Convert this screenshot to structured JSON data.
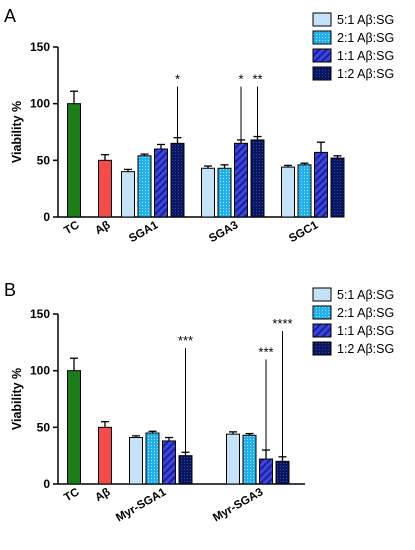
{
  "chart_data": [
    {
      "type": "bar",
      "panel_label": "A",
      "ylabel": "Viability %",
      "ylim": [
        0,
        150
      ],
      "yticks": [
        0,
        50,
        100,
        150
      ],
      "legend": {
        "placement": "top-right",
        "entries": [
          "5:1 Aβ:SG",
          "2:1 Aβ:SG",
          "1:1 Aβ:SG",
          "1:2 Aβ:SG"
        ]
      },
      "controls": [
        {
          "label": "TC",
          "value": 100,
          "error": 11,
          "color": "#1b7e1b"
        },
        {
          "label": "Aβ",
          "value": 50,
          "error": 5,
          "color": "#f44b4b"
        }
      ],
      "groups": [
        {
          "label": "SGA1",
          "values": [
            40,
            54,
            60,
            65
          ],
          "errors": [
            2,
            1.5,
            4,
            5
          ]
        },
        {
          "label": "SGA3",
          "values": [
            43,
            43,
            65,
            68
          ],
          "errors": [
            2,
            3,
            3,
            3
          ]
        },
        {
          "label": "SGC1",
          "values": [
            44,
            46,
            57,
            52
          ],
          "errors": [
            1.5,
            1.5,
            9,
            2
          ]
        }
      ],
      "series_styles": [
        {
          "fill": "#c6e2f7",
          "pattern": "none"
        },
        {
          "fill": "#22b0ea",
          "pattern": "dots"
        },
        {
          "fill": "#3e46d9",
          "pattern": "hatch"
        },
        {
          "fill": "#0b1660",
          "pattern": "fine-dots"
        }
      ],
      "significance": [
        {
          "group": 0,
          "series": 3,
          "text": "*",
          "to": 115
        },
        {
          "group": 1,
          "series": 2,
          "text": "*",
          "to": 115
        },
        {
          "group": 1,
          "series": 3,
          "text": "**",
          "to": 115
        }
      ]
    },
    {
      "type": "bar",
      "panel_label": "B",
      "ylabel": "Viability %",
      "ylim": [
        0,
        150
      ],
      "yticks": [
        0,
        50,
        100,
        150
      ],
      "legend": {
        "placement": "top-right",
        "entries": [
          "5:1 Aβ:SG",
          "2:1 Aβ:SG",
          "1:1 Aβ:SG",
          "1:2 Aβ:SG"
        ]
      },
      "controls": [
        {
          "label": "TC",
          "value": 100,
          "error": 11,
          "color": "#1b7e1b"
        },
        {
          "label": "Aβ",
          "value": 50,
          "error": 5,
          "color": "#f44b4b"
        }
      ],
      "groups": [
        {
          "label": "Myr-SGA1",
          "values": [
            41,
            45,
            38,
            25
          ],
          "errors": [
            1.5,
            1.5,
            3,
            3
          ]
        },
        {
          "label": "Myr-SGA3",
          "values": [
            44,
            43,
            22,
            20
          ],
          "errors": [
            2,
            1.5,
            8,
            4
          ]
        }
      ],
      "series_styles": [
        {
          "fill": "#c6e2f7",
          "pattern": "none"
        },
        {
          "fill": "#22b0ea",
          "pattern": "dots"
        },
        {
          "fill": "#3e46d9",
          "pattern": "hatch"
        },
        {
          "fill": "#0b1660",
          "pattern": "fine-dots"
        }
      ],
      "significance": [
        {
          "group": 0,
          "series": 3,
          "text": "***",
          "to": 120
        },
        {
          "group": 1,
          "series": 2,
          "text": "***",
          "to": 110
        },
        {
          "group": 1,
          "series": 3,
          "text": "****",
          "to": 135
        }
      ]
    }
  ]
}
